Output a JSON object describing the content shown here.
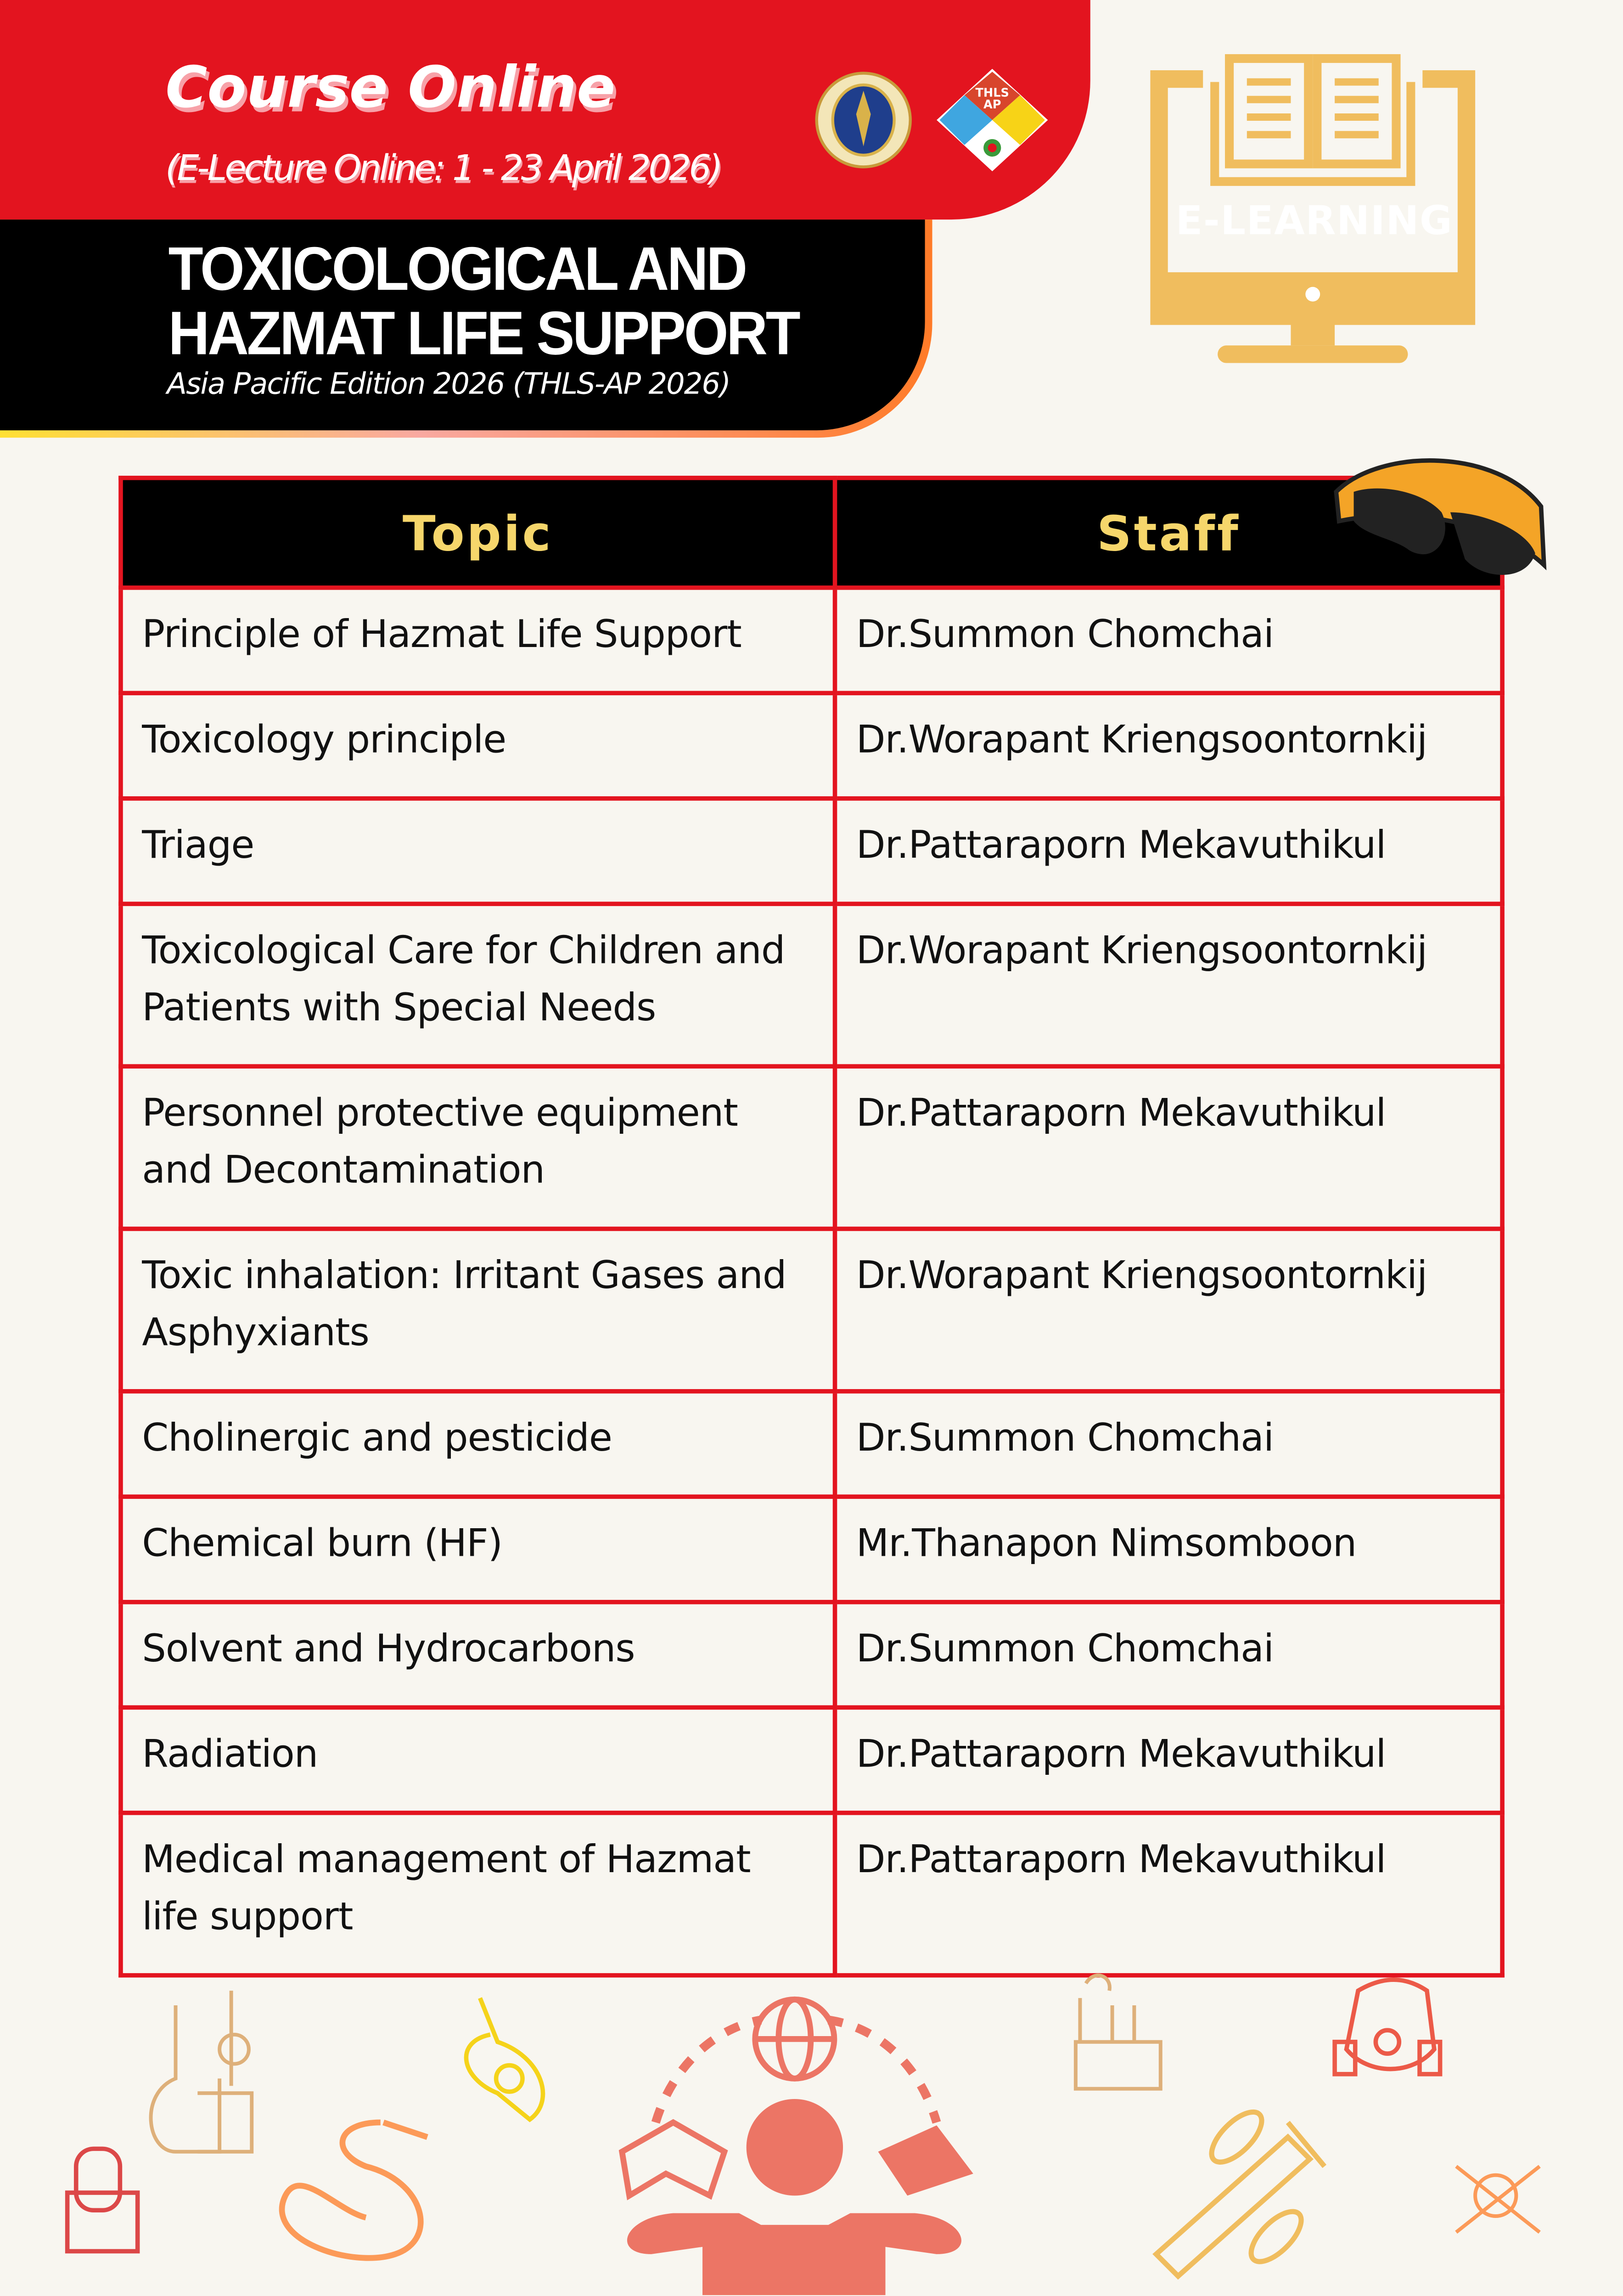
{
  "header": {
    "course_label": "Course Online",
    "dates": "(E-Lecture Online: 1 - 23 April 2026)",
    "title_line1": "TOXICOLOGICAL AND",
    "title_line2": "HAZMAT LIFE SUPPORT",
    "edition": "Asia Pacific Edition 2026 (THLS-AP 2026)",
    "logos": [
      {
        "name": "mahidol-university-seal"
      },
      {
        "name": "thls-ap-logo",
        "text": "THLS AP"
      }
    ]
  },
  "elearning": {
    "label": "E-LEARNING",
    "icon": "monitor-book-icon"
  },
  "table": {
    "headers": [
      "Topic",
      "Staff"
    ],
    "rows": [
      {
        "topic": "Principle of Hazmat Life Support",
        "staff": "Dr.Summon Chomchai"
      },
      {
        "topic": "Toxicology principle",
        "staff": "Dr.Worapant Kriengsoontornkij"
      },
      {
        "topic": "Triage",
        "staff": "Dr.Pattaraporn Mekavuthikul"
      },
      {
        "topic": "Toxicological Care for Children and Patients with Special Needs",
        "staff": "Dr.Worapant Kriengsoontornkij"
      },
      {
        "topic": "Personnel protective equipment and Decontamination",
        "staff": "Dr.Pattaraporn Mekavuthikul"
      },
      {
        "topic": "Toxic inhalation: Irritant Gases and Asphyxiants",
        "staff": "Dr.Worapant Kriengsoontornkij"
      },
      {
        "topic": "Cholinergic and pesticide",
        "staff": "Dr.Summon Chomchai"
      },
      {
        "topic": "Chemical burn (HF)",
        "staff": "Mr.Thanapon Nimsomboon"
      },
      {
        "topic": "Solvent and Hydrocarbons",
        "staff": "Dr.Summon Chomchai"
      },
      {
        "topic": "Radiation",
        "staff": "Dr.Pattaraporn Mekavuthikul"
      },
      {
        "topic": "Medical management of Hazmat life support",
        "staff": "Dr.Pattaraporn Mekavuthikul"
      }
    ]
  },
  "colors": {
    "red": "#e3141f",
    "black": "#000000",
    "gold": "#f0bd5e",
    "header_text": "#f6d66b",
    "background": "#f8f6f0",
    "coral": "#ec7565"
  }
}
